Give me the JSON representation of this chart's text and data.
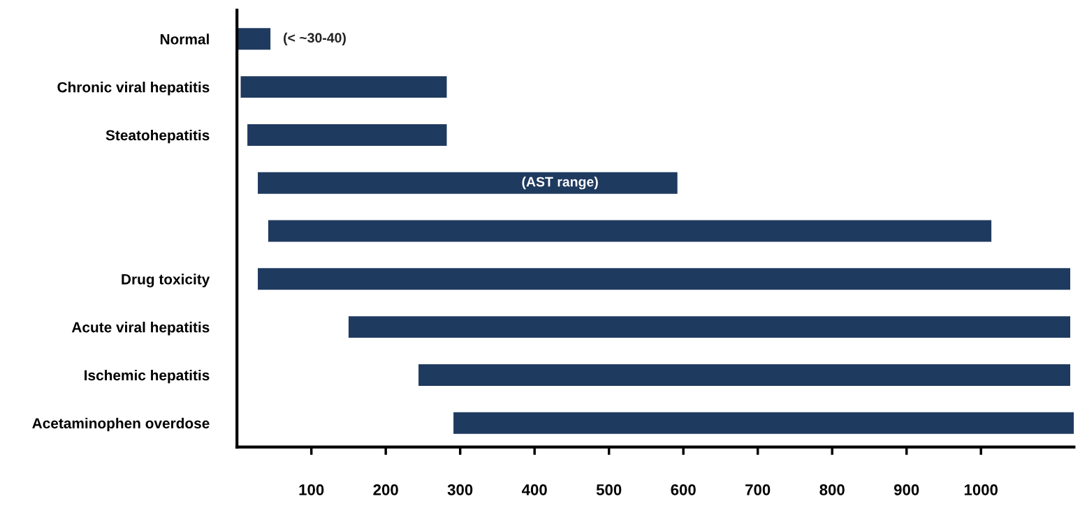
{
  "chart_data": {
    "type": "bar",
    "orientation": "horizontal",
    "categories": [
      "Normal",
      "Chronic viral hepatitis",
      "Steatohepatitis",
      null,
      null,
      "Drug toxicity",
      "Acute viral hepatitis",
      "Ischemic hepatitis",
      "Acetaminophen overdose"
    ],
    "base": [
      0,
      5,
      14,
      28,
      42,
      28,
      150,
      244,
      291
    ],
    "values": [
      45,
      277,
      268,
      564,
      972,
      1092,
      970,
      876,
      834
    ],
    "color": "#1f3a5f",
    "xlim": [
      0,
      1125
    ],
    "xticks": [
      100,
      200,
      300,
      400,
      500,
      600,
      700,
      800,
      900,
      1000
    ],
    "annotations": [
      "(< ~30-40)",
      "(AST range)"
    ],
    "grid": false,
    "legend": false
  }
}
